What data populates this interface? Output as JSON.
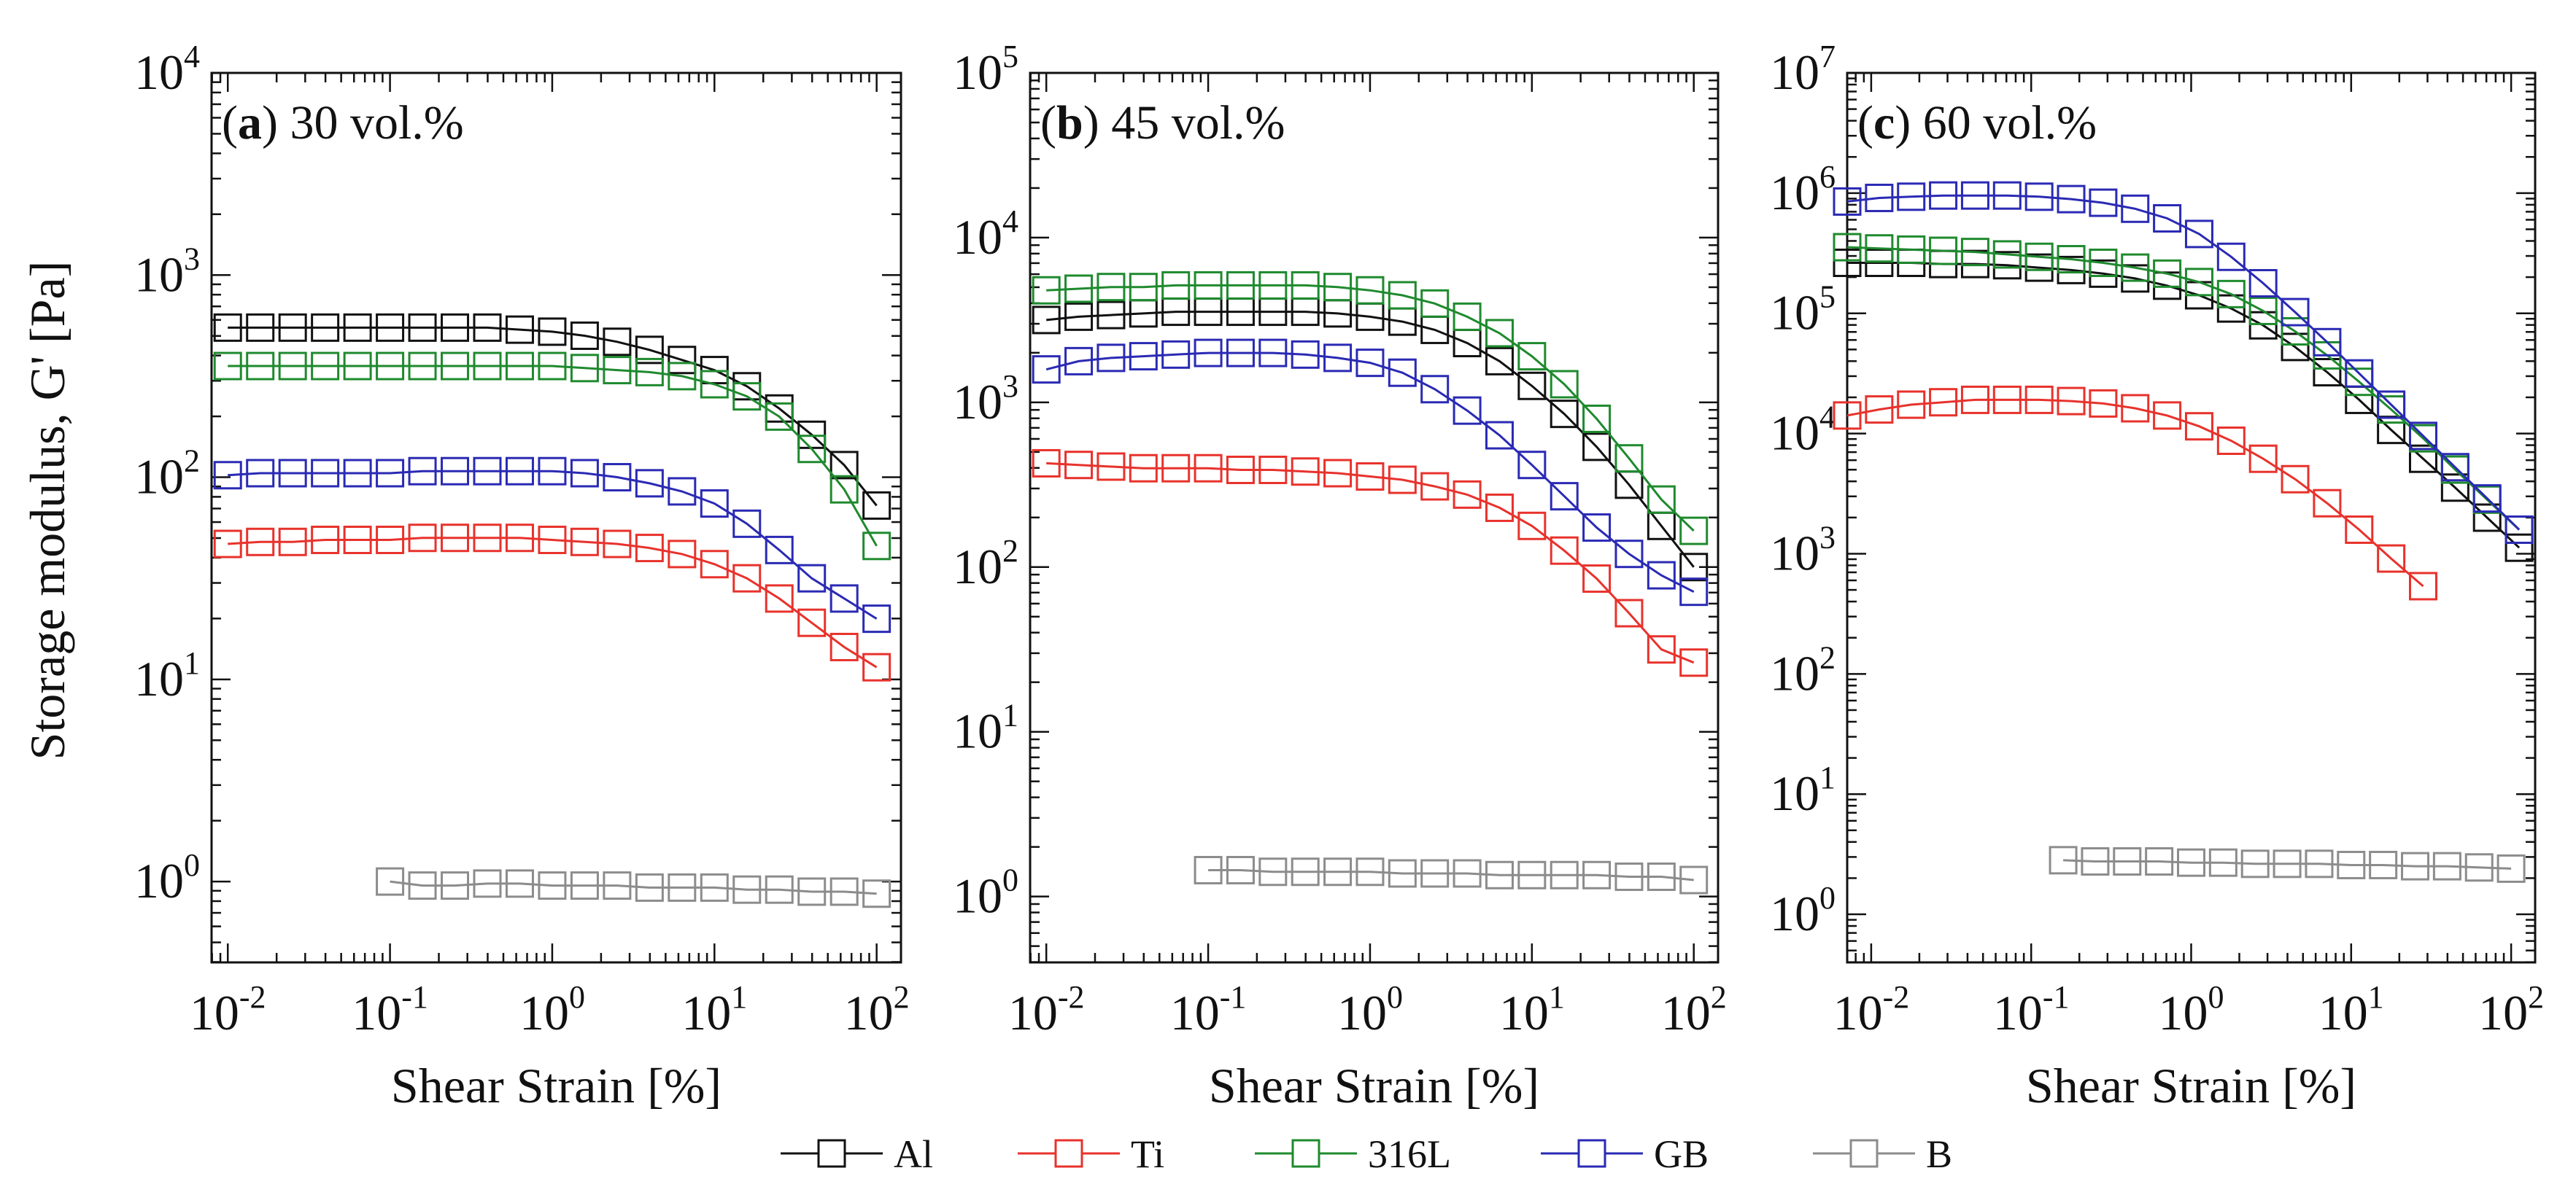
{
  "figure": {
    "y_axis_label": "Storage modulus, G' [Pa]",
    "legend": [
      {
        "name": "Al",
        "color": "#111111"
      },
      {
        "name": "Ti",
        "color": "#e8322c"
      },
      {
        "name": "316L",
        "color": "#1f8a2e"
      },
      {
        "name": "GB",
        "color": "#2a2ab4"
      },
      {
        "name": "B",
        "color": "#8c8c8c"
      }
    ]
  },
  "chart_data": [
    {
      "type": "line",
      "panel": "a",
      "title_letter": "a",
      "title_rest": " 30 vol.%",
      "xlabel": "Shear Strain [%]",
      "ylabel": "Storage modulus, G' [Pa]",
      "xscale": "log",
      "yscale": "log",
      "xlim_exp": [
        -2.1,
        2.15
      ],
      "ylim_exp": [
        -0.4,
        4
      ],
      "x_ticks": [
        {
          "base": "10",
          "exp": "-2",
          "v": -2
        },
        {
          "base": "10",
          "exp": "-1",
          "v": -1
        },
        {
          "base": "10",
          "exp": "0",
          "v": 0
        },
        {
          "base": "10",
          "exp": "1",
          "v": 1
        },
        {
          "base": "10",
          "exp": "2",
          "v": 2
        }
      ],
      "y_ticks": [
        {
          "base": "10",
          "exp": "0",
          "v": 0
        },
        {
          "base": "10",
          "exp": "1",
          "v": 1
        },
        {
          "base": "10",
          "exp": "2",
          "v": 2
        },
        {
          "base": "10",
          "exp": "3",
          "v": 3
        },
        {
          "base": "10",
          "exp": "4",
          "v": 4
        }
      ],
      "series": [
        {
          "name": "Al",
          "x_exp": [
            -2,
            -1.8,
            -1.6,
            -1.4,
            -1.2,
            -1,
            -0.8,
            -0.6,
            -0.4,
            -0.2,
            0,
            0.2,
            0.4,
            0.6,
            0.8,
            1,
            1.2,
            1.4,
            1.6,
            1.8,
            2
          ],
          "y_exp": [
            2.74,
            2.74,
            2.74,
            2.74,
            2.74,
            2.74,
            2.74,
            2.74,
            2.74,
            2.73,
            2.72,
            2.7,
            2.67,
            2.63,
            2.58,
            2.53,
            2.45,
            2.34,
            2.21,
            2.06,
            1.86
          ]
        },
        {
          "name": "Ti",
          "x_exp": [
            -2,
            -1.8,
            -1.6,
            -1.4,
            -1.2,
            -1,
            -0.8,
            -0.6,
            -0.4,
            -0.2,
            0,
            0.2,
            0.4,
            0.6,
            0.8,
            1,
            1.2,
            1.4,
            1.6,
            1.8,
            2
          ],
          "y_exp": [
            1.67,
            1.68,
            1.68,
            1.69,
            1.69,
            1.69,
            1.7,
            1.7,
            1.7,
            1.7,
            1.69,
            1.68,
            1.67,
            1.65,
            1.62,
            1.57,
            1.5,
            1.4,
            1.28,
            1.16,
            1.06
          ]
        },
        {
          "name": "316L",
          "x_exp": [
            -2,
            -1.8,
            -1.6,
            -1.4,
            -1.2,
            -1,
            -0.8,
            -0.6,
            -0.4,
            -0.2,
            0,
            0.2,
            0.4,
            0.6,
            0.8,
            1,
            1.2,
            1.4,
            1.6,
            1.8,
            2
          ],
          "y_exp": [
            2.55,
            2.55,
            2.55,
            2.55,
            2.55,
            2.55,
            2.55,
            2.55,
            2.55,
            2.55,
            2.55,
            2.54,
            2.53,
            2.52,
            2.5,
            2.46,
            2.4,
            2.3,
            2.14,
            1.94,
            1.66
          ]
        },
        {
          "name": "GB",
          "x_exp": [
            -2,
            -1.8,
            -1.6,
            -1.4,
            -1.2,
            -1,
            -0.8,
            -0.6,
            -0.4,
            -0.2,
            0,
            0.2,
            0.4,
            0.6,
            0.8,
            1,
            1.2,
            1.4,
            1.6,
            1.8,
            2
          ],
          "y_exp": [
            2.01,
            2.02,
            2.02,
            2.02,
            2.02,
            2.02,
            2.03,
            2.03,
            2.03,
            2.03,
            2.03,
            2.02,
            2,
            1.97,
            1.93,
            1.87,
            1.77,
            1.64,
            1.5,
            1.4,
            1.3
          ]
        },
        {
          "name": "B",
          "x_exp": [
            -1,
            -0.8,
            -0.6,
            -0.4,
            -0.2,
            0,
            0.2,
            0.4,
            0.6,
            0.8,
            1,
            1.2,
            1.4,
            1.6,
            1.8,
            2
          ],
          "y_exp": [
            0,
            -0.02,
            -0.02,
            -0.01,
            -0.01,
            -0.02,
            -0.02,
            -0.02,
            -0.03,
            -0.03,
            -0.03,
            -0.04,
            -0.04,
            -0.05,
            -0.05,
            -0.06
          ]
        }
      ]
    },
    {
      "type": "line",
      "panel": "b",
      "title_letter": "b",
      "title_rest": " 45 vol.%",
      "xlabel": "Shear Strain [%]",
      "ylabel": "Storage modulus, G' [Pa]",
      "xscale": "log",
      "yscale": "log",
      "xlim_exp": [
        -2.1,
        2.15
      ],
      "ylim_exp": [
        -0.4,
        5
      ],
      "x_ticks": [
        {
          "base": "10",
          "exp": "-2",
          "v": -2
        },
        {
          "base": "10",
          "exp": "-1",
          "v": -1
        },
        {
          "base": "10",
          "exp": "0",
          "v": 0
        },
        {
          "base": "10",
          "exp": "1",
          "v": 1
        },
        {
          "base": "10",
          "exp": "2",
          "v": 2
        }
      ],
      "y_ticks": [
        {
          "base": "10",
          "exp": "0",
          "v": 0
        },
        {
          "base": "10",
          "exp": "1",
          "v": 1
        },
        {
          "base": "10",
          "exp": "2",
          "v": 2
        },
        {
          "base": "10",
          "exp": "3",
          "v": 3
        },
        {
          "base": "10",
          "exp": "4",
          "v": 4
        },
        {
          "base": "10",
          "exp": "5",
          "v": 5
        }
      ],
      "series": [
        {
          "name": "Al",
          "x_exp": [
            -2,
            -1.8,
            -1.6,
            -1.4,
            -1.2,
            -1,
            -0.8,
            -0.6,
            -0.4,
            -0.2,
            0,
            0.2,
            0.4,
            0.6,
            0.8,
            1,
            1.2,
            1.4,
            1.6,
            1.8,
            2
          ],
          "y_exp": [
            3.5,
            3.52,
            3.53,
            3.54,
            3.55,
            3.55,
            3.55,
            3.55,
            3.55,
            3.54,
            3.52,
            3.49,
            3.44,
            3.36,
            3.25,
            3.1,
            2.93,
            2.73,
            2.5,
            2.25,
            2
          ]
        },
        {
          "name": "Ti",
          "x_exp": [
            -2,
            -1.8,
            -1.6,
            -1.4,
            -1.2,
            -1,
            -0.8,
            -0.6,
            -0.4,
            -0.2,
            0,
            0.2,
            0.4,
            0.6,
            0.8,
            1,
            1.2,
            1.4,
            1.6,
            1.8,
            2
          ],
          "y_exp": [
            2.63,
            2.62,
            2.61,
            2.6,
            2.6,
            2.6,
            2.59,
            2.59,
            2.58,
            2.57,
            2.55,
            2.53,
            2.49,
            2.44,
            2.36,
            2.25,
            2.1,
            1.93,
            1.72,
            1.5,
            1.42
          ]
        },
        {
          "name": "316L",
          "x_exp": [
            -2,
            -1.8,
            -1.6,
            -1.4,
            -1.2,
            -1,
            -0.8,
            -0.6,
            -0.4,
            -0.2,
            0,
            0.2,
            0.4,
            0.6,
            0.8,
            1,
            1.2,
            1.4,
            1.6,
            1.8,
            2
          ],
          "y_exp": [
            3.68,
            3.69,
            3.7,
            3.7,
            3.71,
            3.71,
            3.71,
            3.71,
            3.71,
            3.7,
            3.68,
            3.65,
            3.6,
            3.52,
            3.42,
            3.28,
            3.11,
            2.9,
            2.66,
            2.41,
            2.22
          ]
        },
        {
          "name": "GB",
          "x_exp": [
            -2,
            -1.8,
            -1.6,
            -1.4,
            -1.2,
            -1,
            -0.8,
            -0.6,
            -0.4,
            -0.2,
            0,
            0.2,
            0.4,
            0.6,
            0.8,
            1,
            1.2,
            1.4,
            1.6,
            1.8,
            2
          ],
          "y_exp": [
            3.2,
            3.25,
            3.27,
            3.28,
            3.29,
            3.3,
            3.3,
            3.3,
            3.29,
            3.27,
            3.24,
            3.18,
            3.08,
            2.95,
            2.8,
            2.62,
            2.43,
            2.24,
            2.08,
            1.95,
            1.85
          ]
        },
        {
          "name": "B",
          "x_exp": [
            -1,
            -0.8,
            -0.6,
            -0.4,
            -0.2,
            0,
            0.2,
            0.4,
            0.6,
            0.8,
            1,
            1.2,
            1.4,
            1.6,
            1.8,
            2
          ],
          "y_exp": [
            0.16,
            0.16,
            0.15,
            0.15,
            0.15,
            0.15,
            0.14,
            0.14,
            0.14,
            0.13,
            0.13,
            0.13,
            0.13,
            0.12,
            0.12,
            0.1
          ]
        }
      ]
    },
    {
      "type": "line",
      "panel": "c",
      "title_letter": "c",
      "title_rest": " 60 vol.%",
      "xlabel": "Shear Strain [%]",
      "ylabel": "Storage modulus, G' [Pa]",
      "xscale": "log",
      "yscale": "log",
      "xlim_exp": [
        -2.15,
        2.15
      ],
      "ylim_exp": [
        -0.4,
        7
      ],
      "x_ticks": [
        {
          "base": "10",
          "exp": "-2",
          "v": -2
        },
        {
          "base": "10",
          "exp": "-1",
          "v": -1
        },
        {
          "base": "10",
          "exp": "0",
          "v": 0
        },
        {
          "base": "10",
          "exp": "1",
          "v": 1
        },
        {
          "base": "10",
          "exp": "2",
          "v": 2
        }
      ],
      "y_ticks": [
        {
          "base": "10",
          "exp": "0",
          "v": 0
        },
        {
          "base": "10",
          "exp": "1",
          "v": 1
        },
        {
          "base": "10",
          "exp": "2",
          "v": 2
        },
        {
          "base": "10",
          "exp": "3",
          "v": 3
        },
        {
          "base": "10",
          "exp": "4",
          "v": 4
        },
        {
          "base": "10",
          "exp": "5",
          "v": 5
        },
        {
          "base": "10",
          "exp": "6",
          "v": 6
        },
        {
          "base": "10",
          "exp": "7",
          "v": 7
        }
      ],
      "series": [
        {
          "name": "Al",
          "x_exp": [
            -2.15,
            -1.95,
            -1.75,
            -1.55,
            -1.35,
            -1.15,
            -0.95,
            -0.75,
            -0.55,
            -0.35,
            -0.15,
            0.05,
            0.25,
            0.45,
            0.65,
            0.85,
            1.05,
            1.25,
            1.45,
            1.65,
            1.85,
            2.05
          ],
          "y_exp": [
            5.42,
            5.42,
            5.42,
            5.41,
            5.41,
            5.4,
            5.38,
            5.36,
            5.33,
            5.29,
            5.23,
            5.15,
            5.04,
            4.9,
            4.72,
            4.51,
            4.28,
            4.03,
            3.79,
            3.55,
            3.3,
            3.05
          ]
        },
        {
          "name": "Ti",
          "x_exp": [
            -2.15,
            -1.95,
            -1.75,
            -1.55,
            -1.35,
            -1.15,
            -0.95,
            -0.75,
            -0.55,
            -0.35,
            -0.15,
            0.05,
            0.25,
            0.45,
            0.65,
            0.85,
            1.05,
            1.25,
            1.45
          ],
          "y_exp": [
            4.15,
            4.2,
            4.24,
            4.26,
            4.28,
            4.28,
            4.28,
            4.27,
            4.25,
            4.21,
            4.15,
            4.06,
            3.94,
            3.79,
            3.62,
            3.42,
            3.2,
            2.96,
            2.73
          ]
        },
        {
          "name": "316L",
          "x_exp": [
            -2.15,
            -1.95,
            -1.75,
            -1.55,
            -1.35,
            -1.15,
            -0.95,
            -0.75,
            -0.55,
            -0.35,
            -0.15,
            0.05,
            0.25,
            0.45,
            0.65,
            0.85,
            1.05,
            1.25,
            1.45,
            1.65,
            1.85,
            2.05
          ],
          "y_exp": [
            5.55,
            5.54,
            5.53,
            5.52,
            5.51,
            5.49,
            5.47,
            5.45,
            5.42,
            5.38,
            5.33,
            5.26,
            5.16,
            5.02,
            4.85,
            4.65,
            4.43,
            4.2,
            3.96,
            3.7,
            3.45,
            3.2
          ]
        },
        {
          "name": "GB",
          "x_exp": [
            -2.15,
            -1.95,
            -1.75,
            -1.55,
            -1.35,
            -1.15,
            -0.95,
            -0.75,
            -0.55,
            -0.35,
            -0.15,
            0.05,
            0.25,
            0.45,
            0.65,
            0.85,
            1.05,
            1.25,
            1.45,
            1.65,
            1.85,
            2.05
          ],
          "y_exp": [
            5.93,
            5.96,
            5.97,
            5.98,
            5.98,
            5.98,
            5.97,
            5.95,
            5.92,
            5.87,
            5.79,
            5.66,
            5.47,
            5.25,
            5.01,
            4.76,
            4.5,
            4.24,
            3.98,
            3.72,
            3.46,
            3.2
          ]
        },
        {
          "name": "B",
          "x_exp": [
            -0.8,
            -0.6,
            -0.4,
            -0.2,
            0,
            0.2,
            0.4,
            0.6,
            0.8,
            1,
            1.2,
            1.4,
            1.6,
            1.8,
            2
          ],
          "y_exp": [
            0.45,
            0.44,
            0.44,
            0.44,
            0.43,
            0.43,
            0.42,
            0.42,
            0.42,
            0.41,
            0.41,
            0.4,
            0.4,
            0.39,
            0.38
          ]
        }
      ]
    }
  ]
}
